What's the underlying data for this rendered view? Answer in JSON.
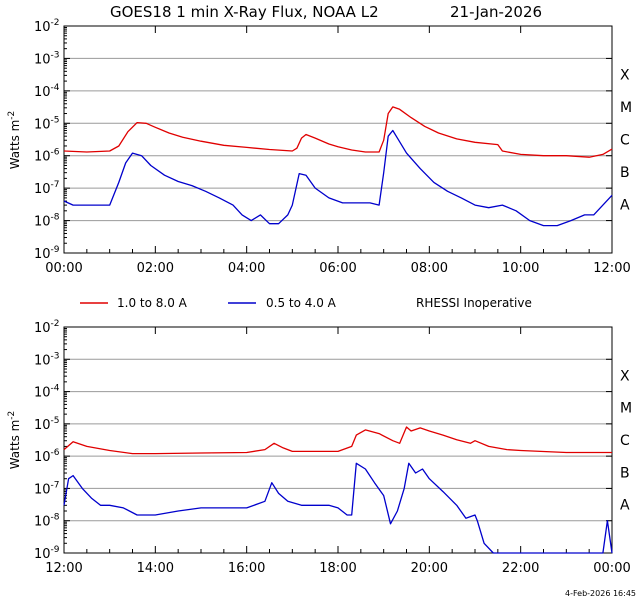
{
  "title": "GOES18 1 min X-Ray Flux, NOAA L2",
  "date": "21-Jan-2026",
  "ylabel": "Watts m",
  "ylabel_exp": "-2",
  "timestamp": "4-Feb-2026 16:45",
  "legend": {
    "long": "1.0 to 8.0 A",
    "short": "0.5 to 4.0 A",
    "note": "RHESSI Inoperative"
  },
  "colors": {
    "long": "#e00000",
    "short": "#0000cc",
    "grid": "#9a9a9a"
  },
  "flare_classes": [
    "X",
    "M",
    "C",
    "B",
    "A"
  ],
  "chart_data": [
    {
      "type": "line",
      "x_unit": "hours UT, 21-Jan-2026",
      "xlim": [
        0,
        12
      ],
      "x_ticks": [
        "00:00",
        "02:00",
        "04:00",
        "06:00",
        "08:00",
        "10:00",
        "12:00"
      ],
      "ylim": [
        -9,
        -2
      ],
      "yscale": "log",
      "y_ticks_exp": [
        "-9",
        "-8",
        "-7",
        "-6",
        "-5",
        "-4",
        "-3",
        "-2"
      ],
      "grid": true,
      "series": [
        {
          "key": "long",
          "name": "1.0 to 8.0 A",
          "x": [
            0,
            0.5,
            1,
            1.2,
            1.4,
            1.6,
            1.8,
            2.0,
            2.3,
            2.6,
            3.0,
            3.5,
            4.0,
            4.5,
            5.0,
            5.1,
            5.2,
            5.3,
            5.5,
            5.8,
            6.0,
            6.3,
            6.6,
            6.9,
            7.0,
            7.1,
            7.2,
            7.35,
            7.6,
            7.9,
            8.2,
            8.6,
            9.0,
            9.5,
            9.6,
            10.0,
            10.5,
            11.0,
            11.5,
            11.8,
            12.0
          ],
          "y": [
            1.4e-06,
            1.3e-06,
            1.4e-06,
            2e-06,
            5.5e-06,
            1.05e-05,
            1e-05,
            7.5e-06,
            5e-06,
            3.7e-06,
            2.8e-06,
            2.1e-06,
            1.8e-06,
            1.55e-06,
            1.4e-06,
            1.7e-06,
            3.5e-06,
            4.5e-06,
            3.5e-06,
            2.3e-06,
            1.9e-06,
            1.5e-06,
            1.3e-06,
            1.3e-06,
            3e-06,
            2e-05,
            3.2e-05,
            2.7e-05,
            1.5e-05,
            8e-06,
            5e-06,
            3.3e-06,
            2.6e-06,
            2.2e-06,
            1.4e-06,
            1.1e-06,
            1e-06,
            1e-06,
            9e-07,
            1.1e-06,
            1.6e-06
          ]
        },
        {
          "key": "short",
          "name": "0.5 to 4.0 A",
          "x": [
            0,
            0.2,
            0.5,
            0.8,
            1.0,
            1.2,
            1.35,
            1.5,
            1.7,
            1.9,
            2.2,
            2.5,
            2.8,
            3.1,
            3.4,
            3.7,
            3.9,
            4.1,
            4.3,
            4.5,
            4.7,
            4.9,
            5.0,
            5.15,
            5.3,
            5.5,
            5.8,
            6.1,
            6.4,
            6.7,
            6.9,
            7.0,
            7.1,
            7.2,
            7.3,
            7.5,
            7.8,
            8.1,
            8.4,
            8.7,
            9.0,
            9.3,
            9.6,
            9.9,
            10.2,
            10.5,
            10.8,
            11.1,
            11.4,
            11.6,
            11.8,
            12.0
          ],
          "y": [
            4e-08,
            3e-08,
            3e-08,
            3e-08,
            3e-08,
            1.5e-07,
            6e-07,
            1.2e-06,
            1e-06,
            5e-07,
            2.5e-07,
            1.6e-07,
            1.2e-07,
            8e-08,
            5e-08,
            3e-08,
            1.5e-08,
            1e-08,
            1.5e-08,
            8e-09,
            8e-09,
            1.5e-08,
            3e-08,
            2.8e-07,
            2.5e-07,
            1e-07,
            5e-08,
            3.5e-08,
            3.5e-08,
            3.5e-08,
            3e-08,
            3e-07,
            4e-06,
            6e-06,
            3.5e-06,
            1.2e-06,
            4e-07,
            1.5e-07,
            8e-08,
            5e-08,
            3e-08,
            2.5e-08,
            3e-08,
            2e-08,
            1e-08,
            7e-09,
            7e-09,
            1e-08,
            1.5e-08,
            1.5e-08,
            3e-08,
            6e-08
          ]
        }
      ]
    },
    {
      "type": "line",
      "x_unit": "hours UT, 21-Jan-2026",
      "xlim": [
        12,
        24
      ],
      "x_ticks": [
        "12:00",
        "14:00",
        "16:00",
        "18:00",
        "20:00",
        "22:00",
        "00:00"
      ],
      "ylim": [
        -9,
        -2
      ],
      "yscale": "log",
      "y_ticks_exp": [
        "-9",
        "-8",
        "-7",
        "-6",
        "-5",
        "-4",
        "-3",
        "-2"
      ],
      "grid": true,
      "series": [
        {
          "key": "long",
          "name": "1.0 to 8.0 A",
          "x": [
            12.0,
            12.2,
            12.5,
            13.0,
            13.5,
            14.0,
            15.0,
            16.0,
            16.4,
            16.6,
            16.8,
            17.0,
            17.5,
            18.0,
            18.3,
            18.4,
            18.6,
            18.9,
            19.2,
            19.35,
            19.5,
            19.6,
            19.8,
            20.0,
            20.3,
            20.6,
            20.9,
            21.0,
            21.3,
            21.7,
            22.0,
            23.0,
            24.0
          ],
          "y": [
            1.6e-06,
            2.8e-06,
            2e-06,
            1.5e-06,
            1.2e-06,
            1.2e-06,
            1.25e-06,
            1.3e-06,
            1.6e-06,
            2.5e-06,
            1.8e-06,
            1.4e-06,
            1.4e-06,
            1.4e-06,
            2e-06,
            4.5e-06,
            6.5e-06,
            5e-06,
            3e-06,
            2.5e-06,
            8e-06,
            6e-06,
            7.5e-06,
            6e-06,
            4.5e-06,
            3.2e-06,
            2.5e-06,
            3e-06,
            2e-06,
            1.6e-06,
            1.5e-06,
            1.3e-06,
            1.3e-06
          ]
        },
        {
          "key": "short",
          "name": "0.5 to 4.0 A",
          "x": [
            12.0,
            12.1,
            12.2,
            12.4,
            12.6,
            12.8,
            13.0,
            13.3,
            13.6,
            14.0,
            14.5,
            15.0,
            15.5,
            16.0,
            16.4,
            16.55,
            16.7,
            16.9,
            17.2,
            17.5,
            17.8,
            18.0,
            18.2,
            18.3,
            18.4,
            18.6,
            18.8,
            19.0,
            19.15,
            19.3,
            19.45,
            19.55,
            19.7,
            19.85,
            20.0,
            20.3,
            20.6,
            20.8,
            21.0,
            21.05,
            21.2,
            21.4,
            21.6,
            22.0,
            22.5,
            23.0,
            23.5,
            23.8,
            23.9,
            24.0
          ],
          "y": [
            3e-08,
            2e-07,
            2.5e-07,
            1e-07,
            5e-08,
            3e-08,
            3e-08,
            2.5e-08,
            1.5e-08,
            1.5e-08,
            2e-08,
            2.5e-08,
            2.5e-08,
            2.5e-08,
            4e-08,
            1.5e-07,
            7e-08,
            4e-08,
            3e-08,
            3e-08,
            3e-08,
            2.5e-08,
            1.5e-08,
            1.5e-08,
            6e-07,
            4e-07,
            1.5e-07,
            6e-08,
            8e-09,
            2e-08,
            1e-07,
            6e-07,
            3e-07,
            4e-07,
            2e-07,
            8e-08,
            3e-08,
            1.2e-08,
            1.5e-08,
            1e-08,
            2e-09,
            1e-09,
            1e-09,
            1e-09,
            1e-09,
            1e-09,
            1e-09,
            1e-09,
            1e-08,
            1e-09
          ]
        }
      ]
    }
  ]
}
